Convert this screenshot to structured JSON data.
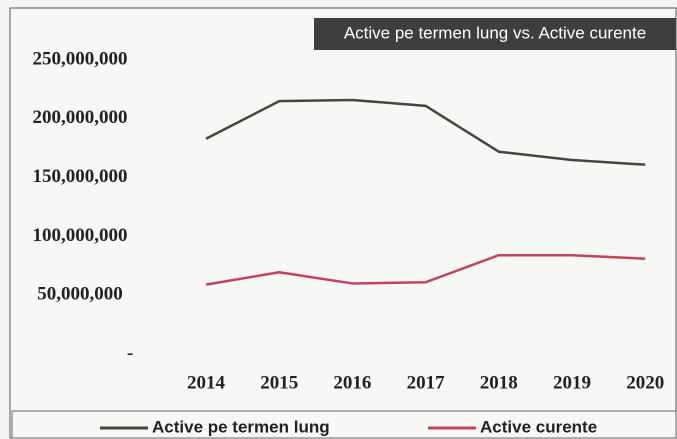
{
  "chart_data": {
    "type": "line",
    "title": "Active pe termen lung vs. Active curente",
    "categories": [
      "2014",
      "2015",
      "2016",
      "2017",
      "2018",
      "2019",
      "2020"
    ],
    "series": [
      {
        "name": "Active pe termen lung",
        "color": "#3e4a40",
        "values": [
          183000000,
          215000000,
          216000000,
          211000000,
          172000000,
          165000000,
          161000000
        ]
      },
      {
        "name": "Active curente",
        "color": "#c4435c",
        "values": [
          59000000,
          69500000,
          60000000,
          61000000,
          84000000,
          84000000,
          81000000
        ]
      }
    ],
    "ylim": [
      0,
      250000000
    ],
    "yticks": [
      {
        "value": 0,
        "label": "-"
      },
      {
        "value": 50000000,
        "label": "50,000,000"
      },
      {
        "value": 100000000,
        "label": "100,000,000"
      },
      {
        "value": 150000000,
        "label": "150,000,000"
      },
      {
        "value": 200000000,
        "label": "200,000,000"
      },
      {
        "value": 250000000,
        "label": "250,000,000"
      }
    ],
    "grid": false,
    "legend": "bottom"
  }
}
